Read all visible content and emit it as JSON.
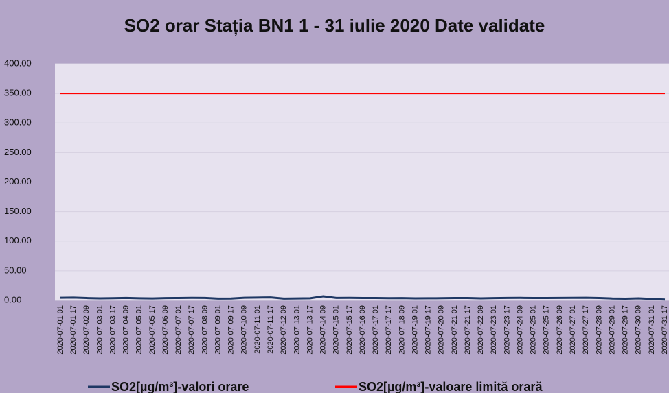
{
  "chart_data": {
    "type": "line",
    "title": "SO2 orar  Stația BN1 1 - 31 iulie 2020 Date validate",
    "categories": [
      "2020-07-01 01",
      "2020-07-01 17",
      "2020-07-02 09",
      "2020-07-03 01",
      "2020-07-03 17",
      "2020-07-04 09",
      "2020-07-05 01",
      "2020-07-05 17",
      "2020-07-06 09",
      "2020-07-07 01",
      "2020-07-07 17",
      "2020-07-08 09",
      "2020-07-09 01",
      "2020-07-09 17",
      "2020-07-10 09",
      "2020-07-11 01",
      "2020-07-11 17",
      "2020-07-12 09",
      "2020-07-13 01",
      "2020-07-13 17",
      "2020-07-14 09",
      "2020-07-15 01",
      "2020-07-15 17",
      "2020-07-16 09",
      "2020-07-17 01",
      "2020-07-17 17",
      "2020-07-18 09",
      "2020-07-19 01",
      "2020-07-19 17",
      "2020-07-20 09",
      "2020-07-21 01",
      "2020-07-21 17",
      "2020-07-22 09",
      "2020-07-23 01",
      "2020-07-23 17",
      "2020-07-24 09",
      "2020-07-25 01",
      "2020-07-25 17",
      "2020-07-26 09",
      "2020-07-27 01",
      "2020-07-27 17",
      "2020-07-28 09",
      "2020-07-29 01",
      "2020-07-29 17",
      "2020-07-30 09",
      "2020-07-31 01",
      "2020-07-31 17"
    ],
    "series": [
      {
        "name": "SO2[µg/m³]-valori orare",
        "color": "#1f3864",
        "values": [
          4.5,
          4.8,
          4,
          3.5,
          3.8,
          4.2,
          3.6,
          3.4,
          3.9,
          4.1,
          4.3,
          4.2,
          3,
          3.2,
          4.5,
          4.8,
          5,
          3.1,
          3.3,
          3.6,
          7,
          4.2,
          4.4,
          4.1,
          4,
          3.8,
          3.9,
          3.5,
          3.6,
          3.7,
          4,
          4.1,
          3.5,
          3.9,
          4.2,
          4.3,
          4.1,
          4,
          4.2,
          4.3,
          4.5,
          4.1,
          3.2,
          2.9,
          3.5,
          2.5,
          1.5
        ]
      },
      {
        "name": "SO2[µg/m³]-valoare limită orară",
        "color": "#ff0000",
        "values": [
          350,
          350,
          350,
          350,
          350,
          350,
          350,
          350,
          350,
          350,
          350,
          350,
          350,
          350,
          350,
          350,
          350,
          350,
          350,
          350,
          350,
          350,
          350,
          350,
          350,
          350,
          350,
          350,
          350,
          350,
          350,
          350,
          350,
          350,
          350,
          350,
          350,
          350,
          350,
          350,
          350,
          350,
          350,
          350,
          350,
          350,
          350
        ]
      }
    ],
    "ylim": [
      0,
      400
    ],
    "yticks": [
      {
        "value": 0,
        "label": "0.00"
      },
      {
        "value": 50,
        "label": "50.00"
      },
      {
        "value": 100,
        "label": "100.00"
      },
      {
        "value": 150,
        "label": "150.00"
      },
      {
        "value": 200,
        "label": "200.00"
      },
      {
        "value": 250,
        "label": "250.00"
      },
      {
        "value": 300,
        "label": "300.00"
      },
      {
        "value": 350,
        "label": "350.00"
      },
      {
        "value": 400,
        "label": "400.00"
      }
    ],
    "grid": true
  }
}
